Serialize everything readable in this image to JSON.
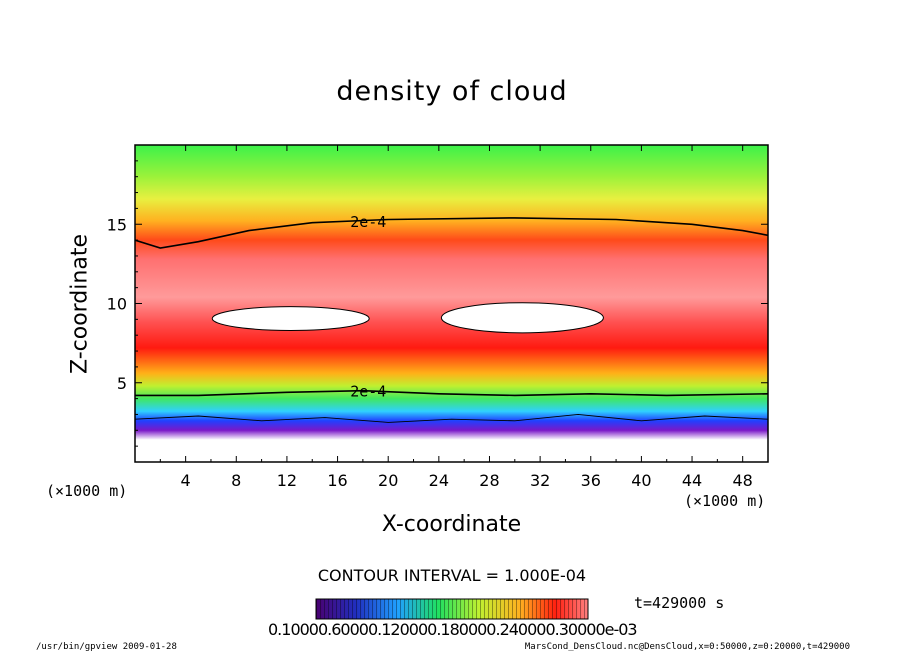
{
  "chart_data": {
    "type": "heatmap",
    "title": "density of cloud",
    "xlabel": "X-coordinate",
    "ylabel": "Z-coordinate",
    "x_unit_label": "(×1000 m)",
    "x_unit_label_right": "(×1000 m)",
    "xlim": [
      0,
      50
    ],
    "ylim": [
      0,
      20
    ],
    "x_ticks": [
      4,
      8,
      12,
      16,
      20,
      24,
      28,
      32,
      36,
      40,
      44,
      48
    ],
    "y_ticks": [
      5,
      10,
      15
    ],
    "contour_labels": [
      {
        "text": "2e-4",
        "x": 17,
        "y": 15.2
      },
      {
        "text": "2e-4",
        "x": 17,
        "y": 4.5
      }
    ],
    "upper_contour": [
      [
        0,
        14.0
      ],
      [
        2,
        13.5
      ],
      [
        5,
        13.9
      ],
      [
        9,
        14.6
      ],
      [
        14,
        15.1
      ],
      [
        20,
        15.3
      ],
      [
        30,
        15.4
      ],
      [
        38,
        15.3
      ],
      [
        44,
        15.0
      ],
      [
        48,
        14.6
      ],
      [
        50,
        14.3
      ]
    ],
    "lower_contour": [
      [
        0,
        4.2
      ],
      [
        5,
        4.2
      ],
      [
        12,
        4.4
      ],
      [
        18,
        4.5
      ],
      [
        24,
        4.3
      ],
      [
        30,
        4.2
      ],
      [
        36,
        4.3
      ],
      [
        42,
        4.2
      ],
      [
        50,
        4.3
      ]
    ],
    "low_contour": [
      [
        0,
        2.7
      ],
      [
        5,
        2.9
      ],
      [
        10,
        2.6
      ],
      [
        15,
        2.8
      ],
      [
        20,
        2.5
      ],
      [
        25,
        2.7
      ],
      [
        30,
        2.6
      ],
      [
        35,
        3.0
      ],
      [
        40,
        2.6
      ],
      [
        45,
        2.9
      ],
      [
        50,
        2.7
      ]
    ],
    "saturated_regions": [
      {
        "cx": 12.3,
        "cy": 9.05,
        "rx": 6.2,
        "ry": 0.75
      },
      {
        "cx": 30.6,
        "cy": 9.1,
        "rx": 6.4,
        "ry": 0.95
      }
    ],
    "contour_interval": "CONTOUR INTERVAL = 1.000E-04",
    "time_label": "t=429000 s",
    "colorbar_labels": "0.10000.60000.120000.180000.240000.30000e-03",
    "footer_left": "/usr/bin/gpview   2009-01-28",
    "footer_right": "MarsCond_DensCloud.nc@DensCloud,x=0:50000,z=0:20000,t=429000"
  }
}
